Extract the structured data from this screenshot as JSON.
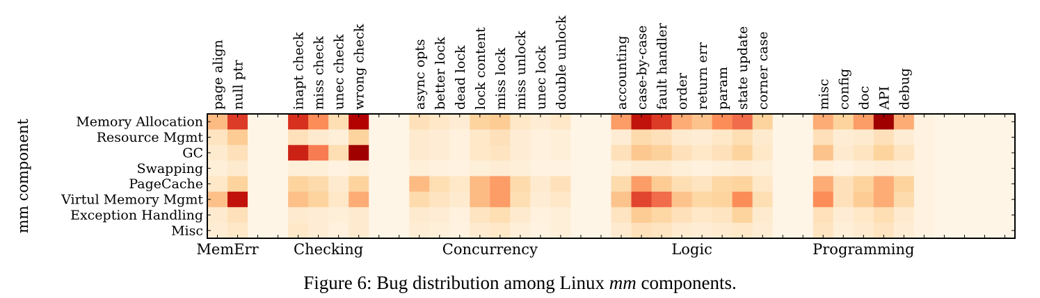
{
  "chart_data": {
    "type": "heatmap",
    "ylabel": "mm component",
    "rows": [
      "Memory Allocation",
      "Resource Mgmt",
      "GC",
      "Swapping",
      "PageCache",
      "Virtul Memory Mgmt",
      "Exception Handling",
      "Misc"
    ],
    "columns": [
      "page align",
      "null ptr",
      "",
      "",
      "inapt check",
      "miss check",
      "unec check",
      "wrong check",
      "",
      "",
      "async opts",
      "better lock",
      "dead lock",
      "lock content",
      "miss lock",
      "miss unlock",
      "unec lock",
      "double unlock",
      "",
      "",
      "accounting",
      "case-by-case",
      "fault handler",
      "order",
      "return err",
      "param",
      "state update",
      "corner case",
      "",
      "",
      "misc",
      "config",
      "doc",
      "API",
      "debug",
      "",
      "",
      "",
      "",
      ""
    ],
    "groups": [
      {
        "label": "MemErr",
        "start": 0,
        "end": 1
      },
      {
        "label": "Checking",
        "start": 4,
        "end": 7
      },
      {
        "label": "Concurrency",
        "start": 10,
        "end": 17
      },
      {
        "label": "Logic",
        "start": 20,
        "end": 27
      },
      {
        "label": "Programming",
        "start": 30,
        "end": 34
      }
    ],
    "color_scale": "OrRd (0 = light cream, 1 = dark red)",
    "values": [
      [
        0.45,
        0.8,
        0.02,
        0.02,
        0.82,
        0.6,
        0.22,
        0.92,
        0.02,
        0.02,
        0.2,
        0.15,
        0.1,
        0.3,
        0.35,
        0.15,
        0.1,
        0.15,
        0.02,
        0.02,
        0.55,
        0.88,
        0.8,
        0.5,
        0.4,
        0.6,
        0.7,
        0.3,
        0.02,
        0.02,
        0.5,
        0.3,
        0.55,
        0.95,
        0.5,
        0.05,
        0.02,
        0.02,
        0.02,
        0.02
      ],
      [
        0.18,
        0.35,
        0.02,
        0.02,
        0.2,
        0.12,
        0.08,
        0.3,
        0.02,
        0.02,
        0.12,
        0.1,
        0.06,
        0.15,
        0.2,
        0.1,
        0.06,
        0.08,
        0.02,
        0.02,
        0.1,
        0.25,
        0.2,
        0.12,
        0.1,
        0.15,
        0.22,
        0.12,
        0.02,
        0.02,
        0.2,
        0.1,
        0.12,
        0.2,
        0.1,
        0.05,
        0.02,
        0.02,
        0.02,
        0.02
      ],
      [
        0.12,
        0.2,
        0.02,
        0.02,
        0.85,
        0.65,
        0.22,
        0.95,
        0.02,
        0.02,
        0.12,
        0.1,
        0.06,
        0.15,
        0.18,
        0.1,
        0.06,
        0.08,
        0.02,
        0.02,
        0.2,
        0.38,
        0.32,
        0.2,
        0.15,
        0.2,
        0.3,
        0.15,
        0.02,
        0.02,
        0.4,
        0.12,
        0.18,
        0.3,
        0.18,
        0.05,
        0.02,
        0.02,
        0.02,
        0.02
      ],
      [
        0.08,
        0.12,
        0.02,
        0.02,
        0.08,
        0.08,
        0.05,
        0.08,
        0.02,
        0.02,
        0.08,
        0.06,
        0.05,
        0.08,
        0.1,
        0.08,
        0.05,
        0.05,
        0.02,
        0.02,
        0.08,
        0.12,
        0.12,
        0.08,
        0.06,
        0.08,
        0.1,
        0.08,
        0.02,
        0.02,
        0.08,
        0.05,
        0.08,
        0.1,
        0.08,
        0.05,
        0.02,
        0.02,
        0.02,
        0.02
      ],
      [
        0.15,
        0.3,
        0.02,
        0.02,
        0.3,
        0.25,
        0.12,
        0.3,
        0.02,
        0.02,
        0.45,
        0.22,
        0.15,
        0.45,
        0.55,
        0.25,
        0.12,
        0.2,
        0.02,
        0.02,
        0.25,
        0.55,
        0.35,
        0.22,
        0.18,
        0.28,
        0.3,
        0.15,
        0.02,
        0.02,
        0.5,
        0.2,
        0.3,
        0.5,
        0.3,
        0.05,
        0.02,
        0.02,
        0.02,
        0.02
      ],
      [
        0.42,
        0.88,
        0.02,
        0.02,
        0.42,
        0.3,
        0.15,
        0.5,
        0.02,
        0.02,
        0.25,
        0.18,
        0.12,
        0.45,
        0.55,
        0.22,
        0.1,
        0.15,
        0.02,
        0.02,
        0.4,
        0.78,
        0.7,
        0.4,
        0.28,
        0.3,
        0.6,
        0.22,
        0.02,
        0.02,
        0.6,
        0.2,
        0.35,
        0.5,
        0.25,
        0.05,
        0.02,
        0.02,
        0.02,
        0.02
      ],
      [
        0.12,
        0.2,
        0.02,
        0.02,
        0.12,
        0.1,
        0.08,
        0.12,
        0.02,
        0.02,
        0.12,
        0.1,
        0.06,
        0.18,
        0.22,
        0.12,
        0.06,
        0.08,
        0.02,
        0.02,
        0.18,
        0.35,
        0.28,
        0.2,
        0.15,
        0.18,
        0.3,
        0.12,
        0.02,
        0.02,
        0.2,
        0.1,
        0.15,
        0.22,
        0.12,
        0.05,
        0.02,
        0.02,
        0.02,
        0.02
      ],
      [
        0.1,
        0.15,
        0.02,
        0.02,
        0.15,
        0.1,
        0.06,
        0.12,
        0.02,
        0.02,
        0.1,
        0.08,
        0.05,
        0.12,
        0.15,
        0.08,
        0.05,
        0.08,
        0.02,
        0.02,
        0.12,
        0.2,
        0.18,
        0.12,
        0.1,
        0.12,
        0.15,
        0.1,
        0.02,
        0.02,
        0.18,
        0.08,
        0.12,
        0.18,
        0.1,
        0.05,
        0.02,
        0.02,
        0.02,
        0.02
      ]
    ]
  },
  "caption": {
    "prefix": "Figure 6: Bug distribution among Linux ",
    "emph": "mm",
    "suffix": " components."
  }
}
